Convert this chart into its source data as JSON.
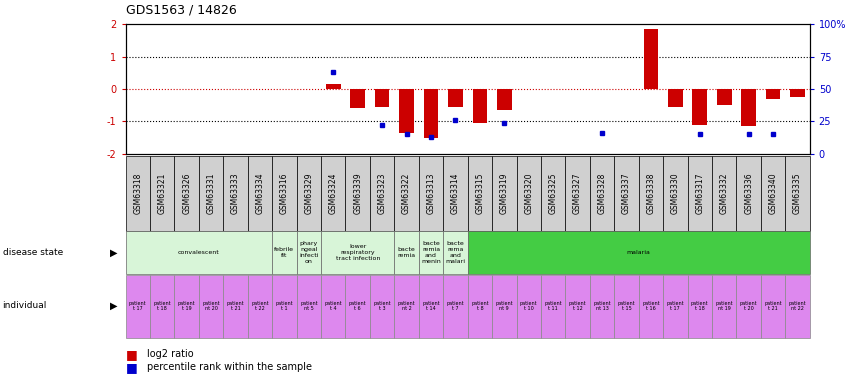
{
  "title": "GDS1563 / 14826",
  "samples": [
    "GSM63318",
    "GSM63321",
    "GSM63326",
    "GSM63331",
    "GSM63333",
    "GSM63334",
    "GSM63316",
    "GSM63329",
    "GSM63324",
    "GSM63339",
    "GSM63323",
    "GSM63322",
    "GSM63313",
    "GSM63314",
    "GSM63315",
    "GSM63319",
    "GSM63320",
    "GSM63325",
    "GSM63327",
    "GSM63328",
    "GSM63337",
    "GSM63338",
    "GSM63330",
    "GSM63317",
    "GSM63332",
    "GSM63336",
    "GSM63340",
    "GSM63335"
  ],
  "log2_ratio": [
    0,
    0,
    0,
    0,
    0,
    0,
    0,
    0,
    0.15,
    -0.6,
    -0.55,
    -1.35,
    -1.5,
    -0.55,
    -1.05,
    -0.65,
    0,
    0,
    0,
    0,
    0,
    1.85,
    -0.55,
    -1.1,
    -0.5,
    -1.15,
    -0.3,
    -0.25
  ],
  "percentile_raw": [
    null,
    null,
    null,
    null,
    null,
    null,
    null,
    null,
    63,
    null,
    22,
    15,
    13,
    26,
    null,
    24,
    null,
    null,
    null,
    16,
    null,
    null,
    null,
    15,
    null,
    15,
    15,
    null
  ],
  "disease_state_groups": [
    {
      "label": "convalescent",
      "start": 0,
      "end": 5,
      "color": "#d8f5d8"
    },
    {
      "label": "febrile\nfit",
      "start": 6,
      "end": 6,
      "color": "#d8f5d8"
    },
    {
      "label": "phary\nngeal\ninfecti\non",
      "start": 7,
      "end": 7,
      "color": "#d8f5d8"
    },
    {
      "label": "lower\nrespiratory\ntract infection",
      "start": 8,
      "end": 10,
      "color": "#d8f5d8"
    },
    {
      "label": "bacte\nremia",
      "start": 11,
      "end": 11,
      "color": "#d8f5d8"
    },
    {
      "label": "bacte\nremia\nand\nmenin",
      "start": 12,
      "end": 12,
      "color": "#d8f5d8"
    },
    {
      "label": "bacte\nrema\nand\nmalari",
      "start": 13,
      "end": 13,
      "color": "#d8f5d8"
    },
    {
      "label": "malaria",
      "start": 14,
      "end": 27,
      "color": "#44cc44"
    }
  ],
  "individual_labels": [
    "patient\nt 17",
    "patient\nt 18",
    "patient\nt 19",
    "patient\nnt 20",
    "patient\nt 21",
    "patient\nt 22",
    "patient\nt 1",
    "patient\nnt 5",
    "patient\nt 4",
    "patient\nt 6",
    "patient\nt 3",
    "patient\nnt 2",
    "patient\nt 14",
    "patient\nt 7",
    "patient\nt 8",
    "patient\nnt 9",
    "patient\nt 10",
    "patient\nt 11",
    "patient\nt 12",
    "patient\nnt 13",
    "patient\nt 15",
    "patient\nt 16",
    "patient\nt 17",
    "patient\nt 18",
    "patient\nnt 19",
    "patient\nt 20",
    "patient\nt 21",
    "patient\nnt 22"
  ],
  "ylim": [
    -2,
    2
  ],
  "y2lim": [
    0,
    100
  ],
  "bar_color": "#cc0000",
  "dot_color": "#0000cc",
  "zero_line_color": "#cc0000",
  "bg_color": "#ffffff",
  "left_label_color": "#cc0000",
  "right_label_color": "#0000cc",
  "sample_label_bg": "#d0d0d0",
  "ind_color": "#dd88ee"
}
